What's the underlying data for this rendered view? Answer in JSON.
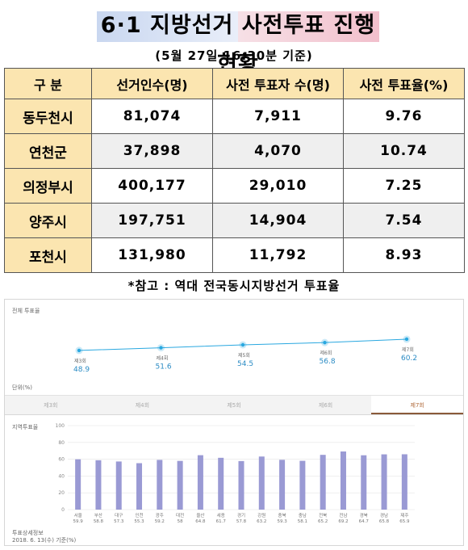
{
  "title": "6·1 지방선거 사전투표 진행 현황",
  "subtitle": "(5월 27일 16:30분 기준)",
  "table": {
    "headers": [
      "구 분",
      "선거인수(명)",
      "사전 투표자 수(명)",
      "사전 투표율(%)"
    ],
    "rows": [
      {
        "region": "동두천시",
        "voters": "81,074",
        "early": "7,911",
        "rate": "9.76"
      },
      {
        "region": "연천군",
        "voters": "37,898",
        "early": "4,070",
        "rate": "10.74"
      },
      {
        "region": "의정부시",
        "voters": "400,177",
        "early": "29,010",
        "rate": "7.25"
      },
      {
        "region": "양주시",
        "voters": "197,751",
        "early": "14,904",
        "rate": "7.54"
      },
      {
        "region": "포천시",
        "voters": "131,980",
        "early": "11,792",
        "rate": "8.93"
      }
    ]
  },
  "reference_title": "*참고 : 역대 전국동시지방선거 투표율",
  "panel": {
    "trend_title": "전체 투표율",
    "unit_note": "단위(%)",
    "tabs": [
      "제3회",
      "제4회",
      "제5회",
      "제6회",
      "제7회"
    ],
    "active_tab": 4,
    "regional_title": "지역투표율",
    "footnote_1": "투표상세정보",
    "footnote_2": "2018. 6. 13(수) 기준(%)"
  },
  "chart_data": [
    {
      "type": "line",
      "title": "전체 투표율",
      "categories": [
        "제3회",
        "제4회",
        "제5회",
        "제6회",
        "제7회"
      ],
      "values": [
        48.9,
        51.6,
        54.5,
        56.8,
        60.2
      ],
      "color": "#2aa8e0"
    },
    {
      "type": "bar",
      "title": "지역투표율",
      "categories": [
        "서울",
        "부산",
        "대구",
        "인천",
        "광주",
        "대전",
        "울산",
        "세종",
        "경기",
        "강원",
        "충북",
        "충남",
        "전북",
        "전남",
        "경북",
        "경남",
        "제주"
      ],
      "values": [
        59.9,
        58.8,
        57.3,
        55.3,
        59.2,
        58.0,
        64.8,
        61.7,
        57.8,
        63.2,
        59.3,
        58.1,
        65.2,
        69.2,
        64.7,
        65.8,
        65.9
      ],
      "value_labels": [
        "59.9",
        "58.8",
        "57.3",
        "55.3",
        "59.2",
        "58",
        "64.8",
        "61.7",
        "57.8",
        "63.2",
        "59.3",
        "58.1",
        "65.2",
        "69.2",
        "64.7",
        "65.8",
        "65.9"
      ],
      "ylim": [
        0,
        100
      ],
      "yticks": [
        0,
        20,
        40,
        60,
        80,
        100
      ],
      "grid": true,
      "color": "#9a9ad4"
    }
  ]
}
